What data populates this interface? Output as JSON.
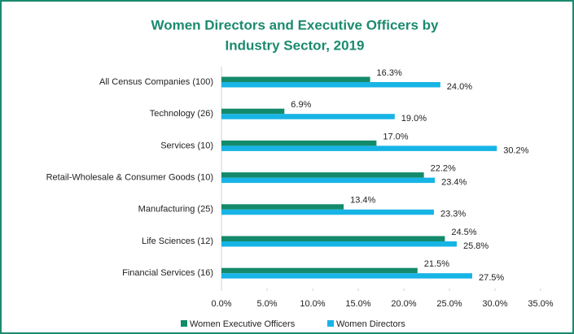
{
  "chart_data": {
    "type": "hbar",
    "title": [
      "Women Directors and Executive Officers by",
      "Industry Sector, 2019"
    ],
    "categories": [
      "All Census Companies (100)",
      "Technology (26)",
      "Services (10)",
      "Retail-Wholesale & Consumer Goods (10)",
      "Manufacturing (25)",
      "Life Sciences (12)",
      "Financial Services (16)"
    ],
    "series": [
      {
        "name": "Women Executive Officers",
        "color": "#138a6c",
        "values": [
          16.3,
          6.9,
          17.0,
          22.2,
          13.4,
          24.5,
          21.5
        ],
        "value_labels": [
          "16.3%",
          "6.9%",
          "17.0%",
          "22.2%",
          "13.4%",
          "24.5%",
          "21.5%"
        ]
      },
      {
        "name": "Women Directors",
        "color": "#17b4e6",
        "values": [
          24.0,
          19.0,
          30.2,
          23.4,
          23.3,
          25.8,
          27.5
        ],
        "value_labels": [
          "24.0%",
          "19.0%",
          "30.2%",
          "23.4%",
          "23.3%",
          "25.8%",
          "27.5%"
        ]
      }
    ],
    "xlim": [
      0,
      35
    ],
    "xticks": [
      {
        "value": 0,
        "label": "0.0%"
      },
      {
        "value": 5,
        "label": "5.0%"
      },
      {
        "value": 10,
        "label": "10.0%"
      },
      {
        "value": 15,
        "label": "15.0%"
      },
      {
        "value": 20,
        "label": "20.0%"
      },
      {
        "value": 25,
        "label": "25.0%"
      },
      {
        "value": 30,
        "label": "30.0%"
      },
      {
        "value": 35,
        "label": "35.0%"
      }
    ],
    "legend": "bottom"
  }
}
